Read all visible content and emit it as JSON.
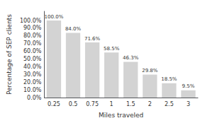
{
  "chart_data": {
    "type": "bar",
    "xlabel": "Miles traveled",
    "ylabel": "Percentage of SEP clients",
    "categories": [
      "0.25",
      "0.5",
      "0.75",
      "1",
      "1.5",
      "2",
      "2.5",
      "3"
    ],
    "values": [
      100.0,
      84.0,
      71.6,
      58.5,
      46.3,
      29.8,
      18.5,
      9.5
    ],
    "value_labels": [
      "100.0%",
      "84.0%",
      "71.6%",
      "58.5%",
      "46.3%",
      "29.8%",
      "18.5%",
      "9.5%"
    ],
    "data_labels": true,
    "color": "#d3d3d3",
    "ylim": [
      0,
      112
    ],
    "yticks": [
      {
        "value": 0,
        "label": "0.0%"
      },
      {
        "value": 10,
        "label": "10.0%"
      },
      {
        "value": 20,
        "label": "20.0%"
      },
      {
        "value": 30,
        "label": "30.0%"
      },
      {
        "value": 40,
        "label": "40.0%"
      },
      {
        "value": 50,
        "label": "50.0%"
      },
      {
        "value": 60,
        "label": "60.0%"
      },
      {
        "value": 70,
        "label": "70.0%"
      },
      {
        "value": 80,
        "label": "80.0%"
      },
      {
        "value": 90,
        "label": "90.0%"
      },
      {
        "value": 100,
        "label": "100.0%"
      }
    ],
    "grid": false
  }
}
